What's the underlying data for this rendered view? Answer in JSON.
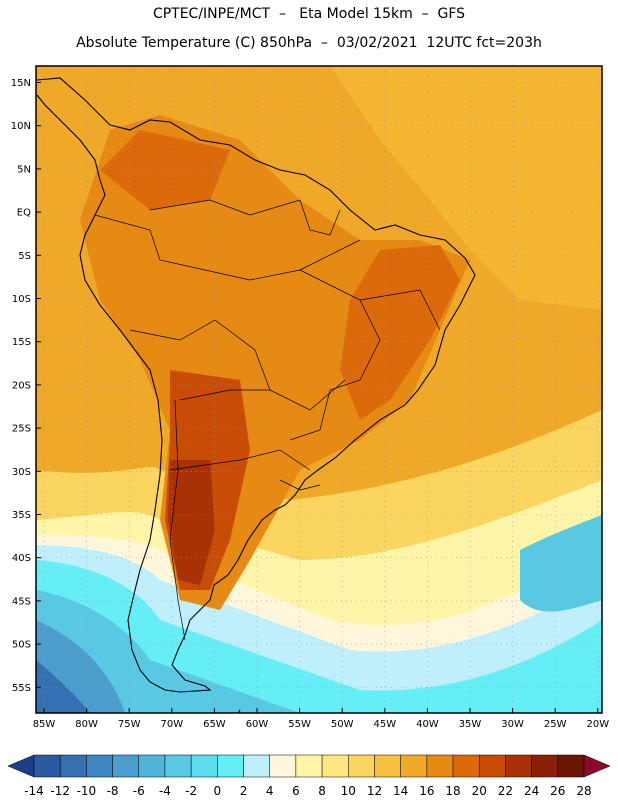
{
  "header": {
    "line1": "CPTEC/INPE/MCT  –   Eta Model 15km  –  GFS",
    "line2": "Absolute Temperature (C) 850hPa  –  03/02/2021  12UTC fct=203h"
  },
  "map": {
    "lat_labels": [
      "15N",
      "10N",
      "5N",
      "EQ",
      "5S",
      "10S",
      "15S",
      "20S",
      "25S",
      "30S",
      "35S",
      "40S",
      "45S",
      "50S",
      "55S"
    ],
    "lon_labels": [
      "85W",
      "80W",
      "75W",
      "70W",
      "65W",
      "60W",
      "55W",
      "50W",
      "45W",
      "40W",
      "35W",
      "30W",
      "25W",
      "20W"
    ],
    "region": "South America",
    "grid": true
  },
  "colorbar": {
    "levels": [
      "-14",
      "-12",
      "-10",
      "-8",
      "-6",
      "-4",
      "-2",
      "0",
      "2",
      "4",
      "6",
      "8",
      "10",
      "12",
      "14",
      "16",
      "18",
      "20",
      "22",
      "24",
      "26",
      "28"
    ],
    "colors": [
      "#1c3f8c",
      "#2b5aa3",
      "#3570b3",
      "#3d86c0",
      "#4a9dcc",
      "#52b3d9",
      "#59c8e3",
      "#5fdced",
      "#66eef7",
      "#bfeffa",
      "#fff6dc",
      "#fff5a8",
      "#ffe680",
      "#fad560",
      "#f5c040",
      "#efa828",
      "#e68a14",
      "#dd6a0a",
      "#c84c05",
      "#a83205",
      "#8a2005",
      "#6a1505",
      "#8b0a2a"
    ]
  }
}
